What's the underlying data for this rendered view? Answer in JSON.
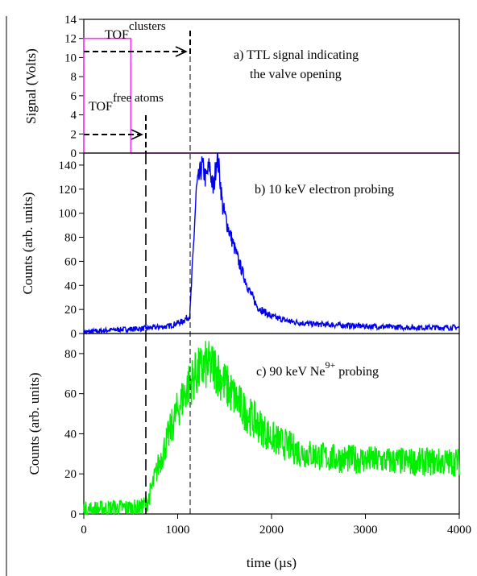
{
  "chart_data": [
    {
      "panel": "a",
      "type": "line",
      "annotation": "a) TTL signal indicating the valve opening",
      "annotation_line1": "a) TTL signal indicating",
      "annotation_line2": "the valve opening",
      "ylabel": "Signal (Volts)",
      "ylim": [
        0,
        14
      ],
      "yticks": [
        0,
        2,
        4,
        6,
        8,
        10,
        12,
        14
      ],
      "color": "#ff33ff",
      "series": [
        {
          "x": [
            0,
            0,
            500,
            500,
            4000
          ],
          "y": [
            0,
            12,
            12,
            0,
            0
          ]
        }
      ],
      "tof_labels": {
        "free_atoms_base": "TOF",
        "free_atoms_sup": "free atoms",
        "clusters_base": "TOF",
        "clusters_sup": "clusters"
      }
    },
    {
      "panel": "b",
      "type": "line",
      "annotation": "b) 10 keV electron probing",
      "ylabel": "Counts (arb. units)",
      "ylim": [
        0,
        150
      ],
      "yticks": [
        0,
        20,
        40,
        60,
        80,
        100,
        120,
        140
      ],
      "color": "#0000ee",
      "series": [
        {
          "x": [
            0,
            300,
            600,
            900,
            1050,
            1130,
            1160,
            1200,
            1260,
            1300,
            1340,
            1380,
            1420,
            1450,
            1480,
            1550,
            1650,
            1750,
            1850,
            2000,
            2200,
            2400,
            2700,
            3000,
            3500,
            4000
          ],
          "y": [
            1,
            3,
            4,
            6,
            10,
            15,
            60,
            120,
            140,
            128,
            140,
            118,
            150,
            130,
            105,
            85,
            60,
            38,
            22,
            14,
            10,
            8,
            7,
            6,
            5,
            5
          ]
        }
      ]
    },
    {
      "panel": "c",
      "type": "line",
      "annotation_prefix": "c) 90 keV Ne",
      "annotation_sup": "9+",
      "annotation_suffix": " probing",
      "ylabel": "Counts (arb. units)",
      "xlabel": "time (µs)",
      "ylim": [
        0,
        90
      ],
      "xlim": [
        0,
        4000
      ],
      "yticks": [
        0,
        20,
        40,
        60,
        80
      ],
      "xticks": [
        0,
        1000,
        2000,
        3000,
        4000
      ],
      "color": "#00ee00",
      "series": [
        {
          "x": [
            0,
            300,
            600,
            680,
            800,
            1000,
            1100,
            1200,
            1300,
            1400,
            1500,
            1700,
            2000,
            2300,
            2600,
            3000,
            3500,
            4000
          ],
          "y": [
            2,
            3,
            3,
            6,
            25,
            52,
            63,
            70,
            74,
            73,
            65,
            52,
            38,
            31,
            28,
            27,
            26,
            26
          ]
        }
      ]
    }
  ]
}
